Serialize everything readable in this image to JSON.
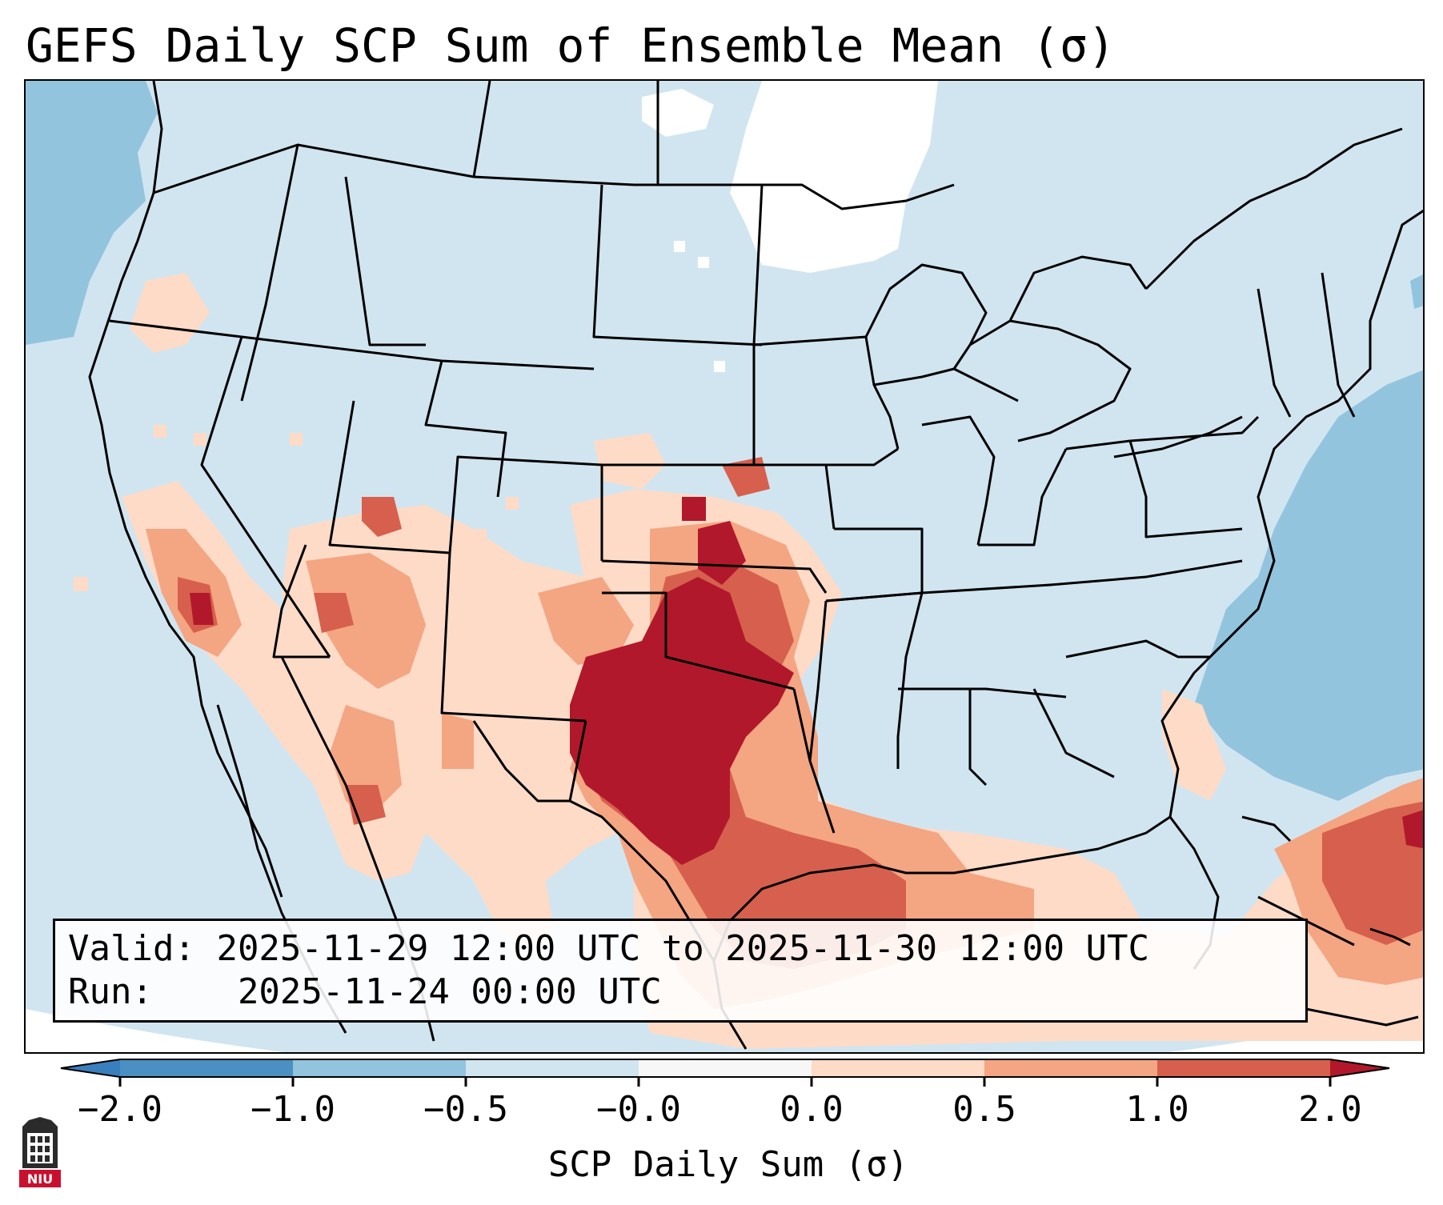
{
  "title": "GEFS Daily SCP Sum of Ensemble Mean (σ)",
  "info": {
    "valid_label": "Valid:",
    "valid_value": "2025-11-29 12:00 UTC to 2025-11-30 12:00 UTC",
    "run_label": "Run:",
    "run_value": "2025-11-24 00:00 UTC"
  },
  "colorbar": {
    "label": "SCP Daily Sum (σ)",
    "ticks": [
      "−2.0",
      "−1.0",
      "−0.5",
      "−0.0",
      "0.0",
      "0.5",
      "1.0",
      "2.0"
    ],
    "bins": [
      {
        "range": "< -2.0",
        "color": "#3a7fbd"
      },
      {
        "range": "-2.0 to -1.0",
        "color": "#4a90c2"
      },
      {
        "range": "-1.0 to -0.5",
        "color": "#93c4de"
      },
      {
        "range": "-0.5 to -0.0",
        "color": "#d1e5f0"
      },
      {
        "range": "-0.0 to 0.0",
        "color": "#f7f7f7"
      },
      {
        "range": "0.0 to 0.5",
        "color": "#fddbc7"
      },
      {
        "range": "0.5 to 1.0",
        "color": "#f4a582"
      },
      {
        "range": "1.0 to 2.0",
        "color": "#d6604d"
      },
      {
        "range": "> 2.0",
        "color": "#b2182b"
      }
    ]
  },
  "logo": {
    "text": "NIU",
    "description": "Northern Illinois University logo"
  },
  "colors": {
    "background_field": "#d1e5f0",
    "negative_field": "#93c4de",
    "near_zero": "#ffffff",
    "low_positive": "#fddbc7",
    "mid_positive": "#f4a582",
    "high_positive": "#d6604d",
    "max_positive": "#b2182b"
  }
}
